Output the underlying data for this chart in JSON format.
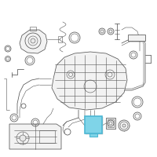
{
  "bg_color": "#ffffff",
  "highlight_color": "#4db8d4",
  "highlight_face": "#7fd4e8",
  "line_color": "#555555",
  "gray_fill": "#e8e8e8",
  "light_fill": "#f2f2f2",
  "figsize": [
    2.0,
    2.0
  ],
  "dpi": 100
}
